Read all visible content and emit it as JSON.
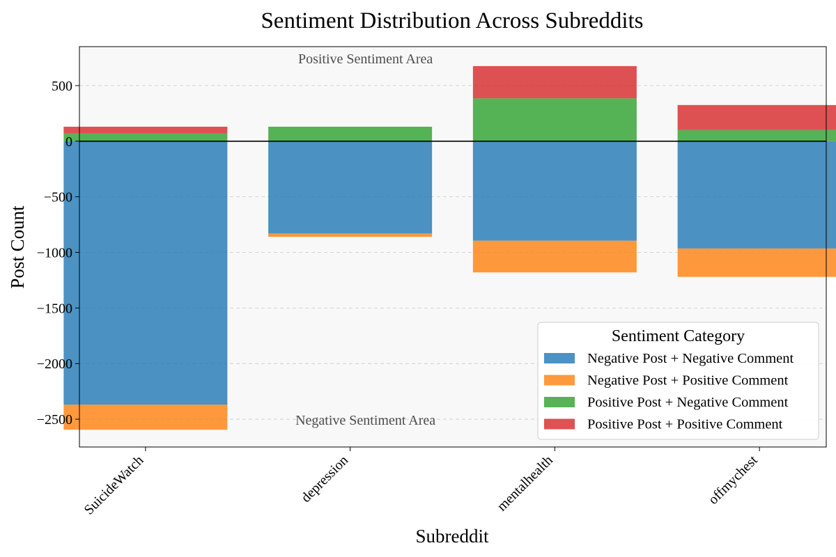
{
  "chart_data": {
    "type": "bar",
    "stacked": "diverging",
    "title": "Sentiment Distribution Across Subreddits",
    "xlabel": "Subreddit",
    "ylabel": "Post Count",
    "categories": [
      "SuicideWatch",
      "depression",
      "mentalhealth",
      "offmychest"
    ],
    "ylim": [
      -2750,
      850
    ],
    "yticks": [
      500,
      0,
      -500,
      -1000,
      -1500,
      -2000,
      -2500
    ],
    "ytick_labels": [
      "500",
      "0",
      "−500",
      "−1000",
      "−1500",
      "−2000",
      "−2500"
    ],
    "grid": true,
    "zero_line": true,
    "annotations": {
      "positive_area": "Positive Sentiment Area",
      "negative_area": "Negative Sentiment Area"
    },
    "legend": {
      "title": "Sentiment Category",
      "placement": "lower-right"
    },
    "series": [
      {
        "name": "Negative Post + Negative Comment",
        "color": "#1f77b4",
        "direction": "negative",
        "values": [
          -2370,
          -830,
          -895,
          -965
        ]
      },
      {
        "name": "Negative Post + Positive Comment",
        "color": "#ff7f0e",
        "direction": "negative",
        "values": [
          -225,
          -30,
          -285,
          -255
        ]
      },
      {
        "name": "Positive Post + Negative Comment",
        "color": "#2ca02c",
        "direction": "positive",
        "values": [
          70,
          130,
          385,
          100
        ]
      },
      {
        "name": "Positive Post + Positive Comment",
        "color": "#d62728",
        "direction": "positive",
        "values": [
          60,
          0,
          290,
          225
        ]
      }
    ]
  }
}
